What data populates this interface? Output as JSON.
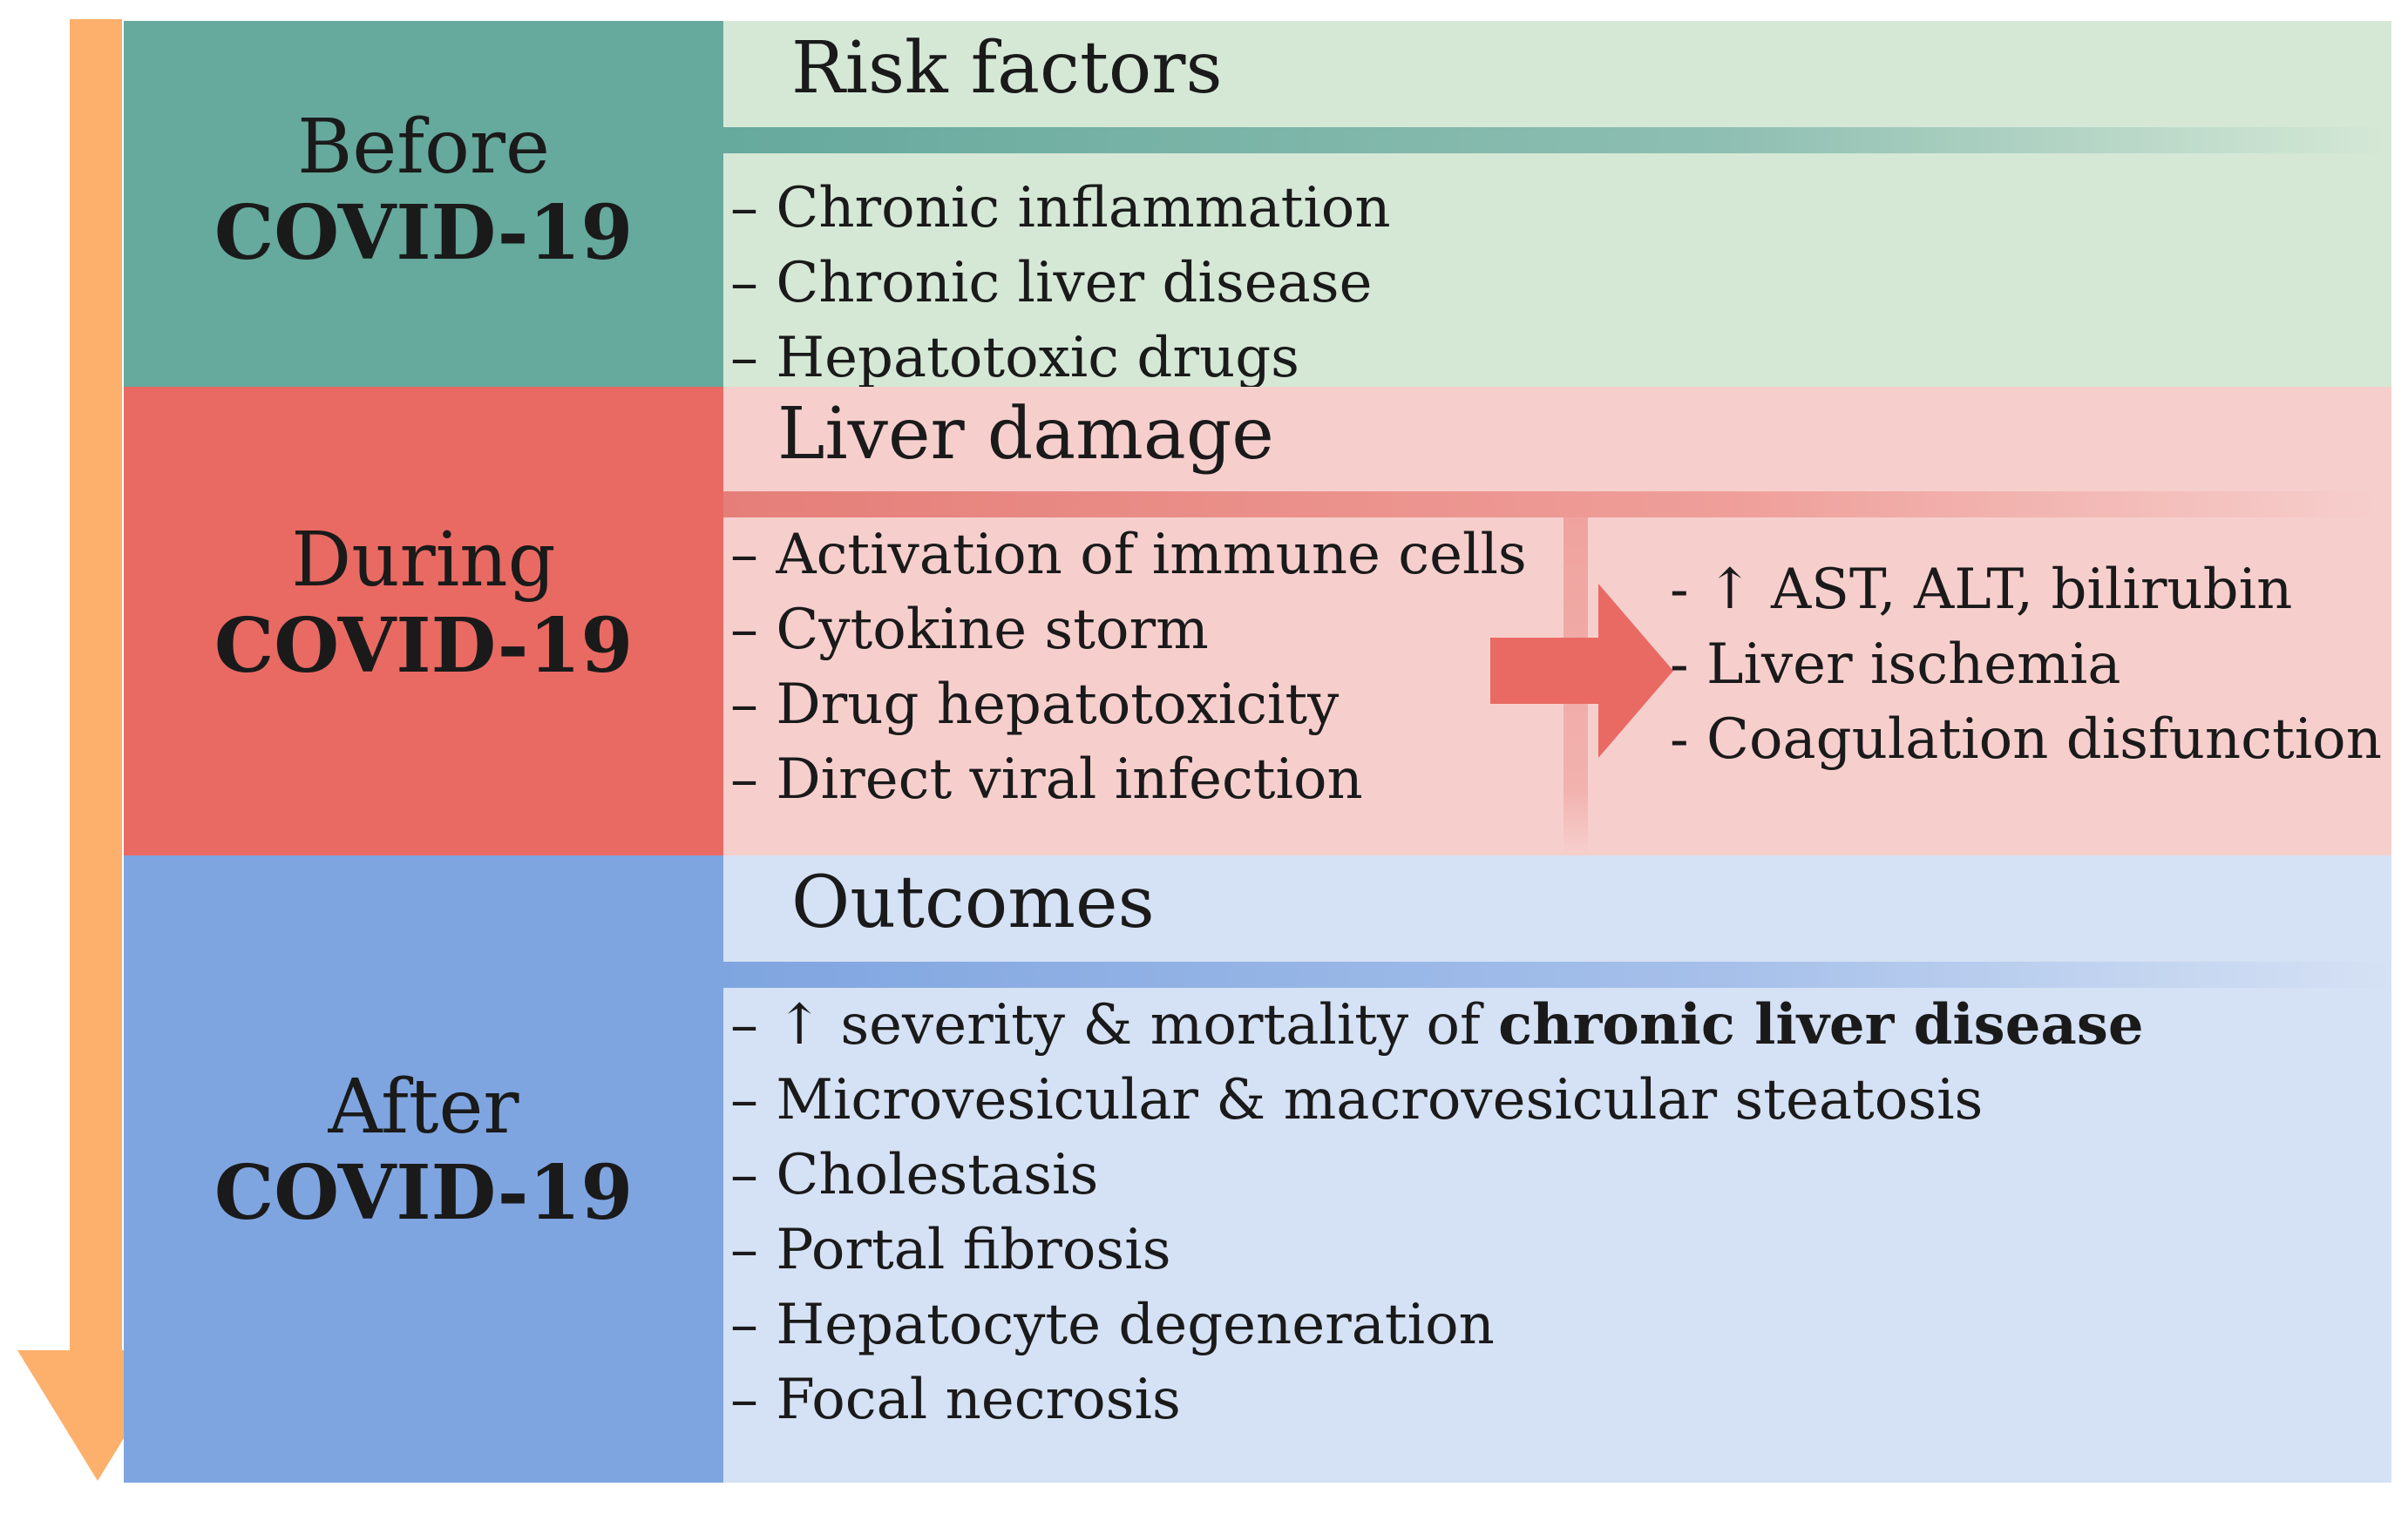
{
  "colors": {
    "timeline_arrow": "#fcb06c",
    "before_stage": "#66a99d",
    "before_panel": "#d5e8d6",
    "during_stage": "#e96a63",
    "during_panel": "#f6cfcd",
    "after_stage": "#7fa5e0",
    "after_panel": "#d5e1f4"
  },
  "stages": {
    "before": {
      "line1": "Before",
      "line2": "COVID-19",
      "header": "Risk factors",
      "items": [
        "– Chronic inflammation",
        "– Chronic liver disease",
        "– Hepatotoxic drugs"
      ]
    },
    "during": {
      "line1": "During",
      "line2": "COVID-19",
      "header": "Liver damage",
      "causes": [
        "– Activation of immune cells",
        "– Cytokine storm",
        "– Drug hepatotoxicity",
        "– Direct viral infection"
      ],
      "effects": [
        "- ↑ AST, ALT, bilirubin",
        "- Liver ischemia",
        "- Coagulation disfunction"
      ]
    },
    "after": {
      "line1": "After",
      "line2": "COVID-19",
      "header": "Outcomes",
      "first_item_prefix": "– ↑ severity & mortality of ",
      "first_item_bold": "chronic liver disease",
      "items": [
        "– Microvesicular & macrovesicular steatosis",
        "– Cholestasis",
        "– Portal fibrosis",
        "– Hepatocyte degeneration",
        "– Focal necrosis"
      ]
    }
  }
}
